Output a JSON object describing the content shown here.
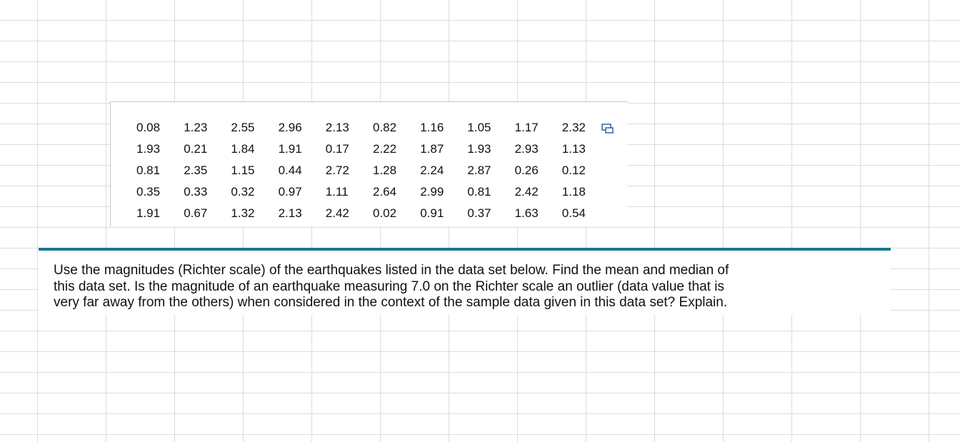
{
  "table": {
    "rows": [
      [
        "0.08",
        "1.23",
        "2.55",
        "2.96",
        "2.13",
        "0.82",
        "1.16",
        "1.05",
        "1.17",
        "2.32"
      ],
      [
        "1.93",
        "0.21",
        "1.84",
        "1.91",
        "0.17",
        "2.22",
        "1.87",
        "1.93",
        "2.93",
        "1.13"
      ],
      [
        "0.81",
        "2.35",
        "1.15",
        "0.44",
        "2.72",
        "1.28",
        "2.24",
        "2.87",
        "0.26",
        "0.12"
      ],
      [
        "0.35",
        "0.33",
        "0.32",
        "0.97",
        "1.11",
        "2.64",
        "2.99",
        "0.81",
        "2.42",
        "1.18"
      ],
      [
        "1.91",
        "0.67",
        "1.32",
        "2.13",
        "2.42",
        "0.02",
        "0.91",
        "0.37",
        "1.63",
        "0.54"
      ]
    ]
  },
  "question": {
    "lines": [
      "Use the magnitudes (Richter scale) of the earthquakes listed in the data set below. Find the mean and median of",
      "this data set. Is the magnitude of an earthquake measuring 7.0 on the Richter scale an outlier (data value that is",
      "very far away from the others) when considered in the context of the sample data given in this data set? Explain."
    ]
  }
}
